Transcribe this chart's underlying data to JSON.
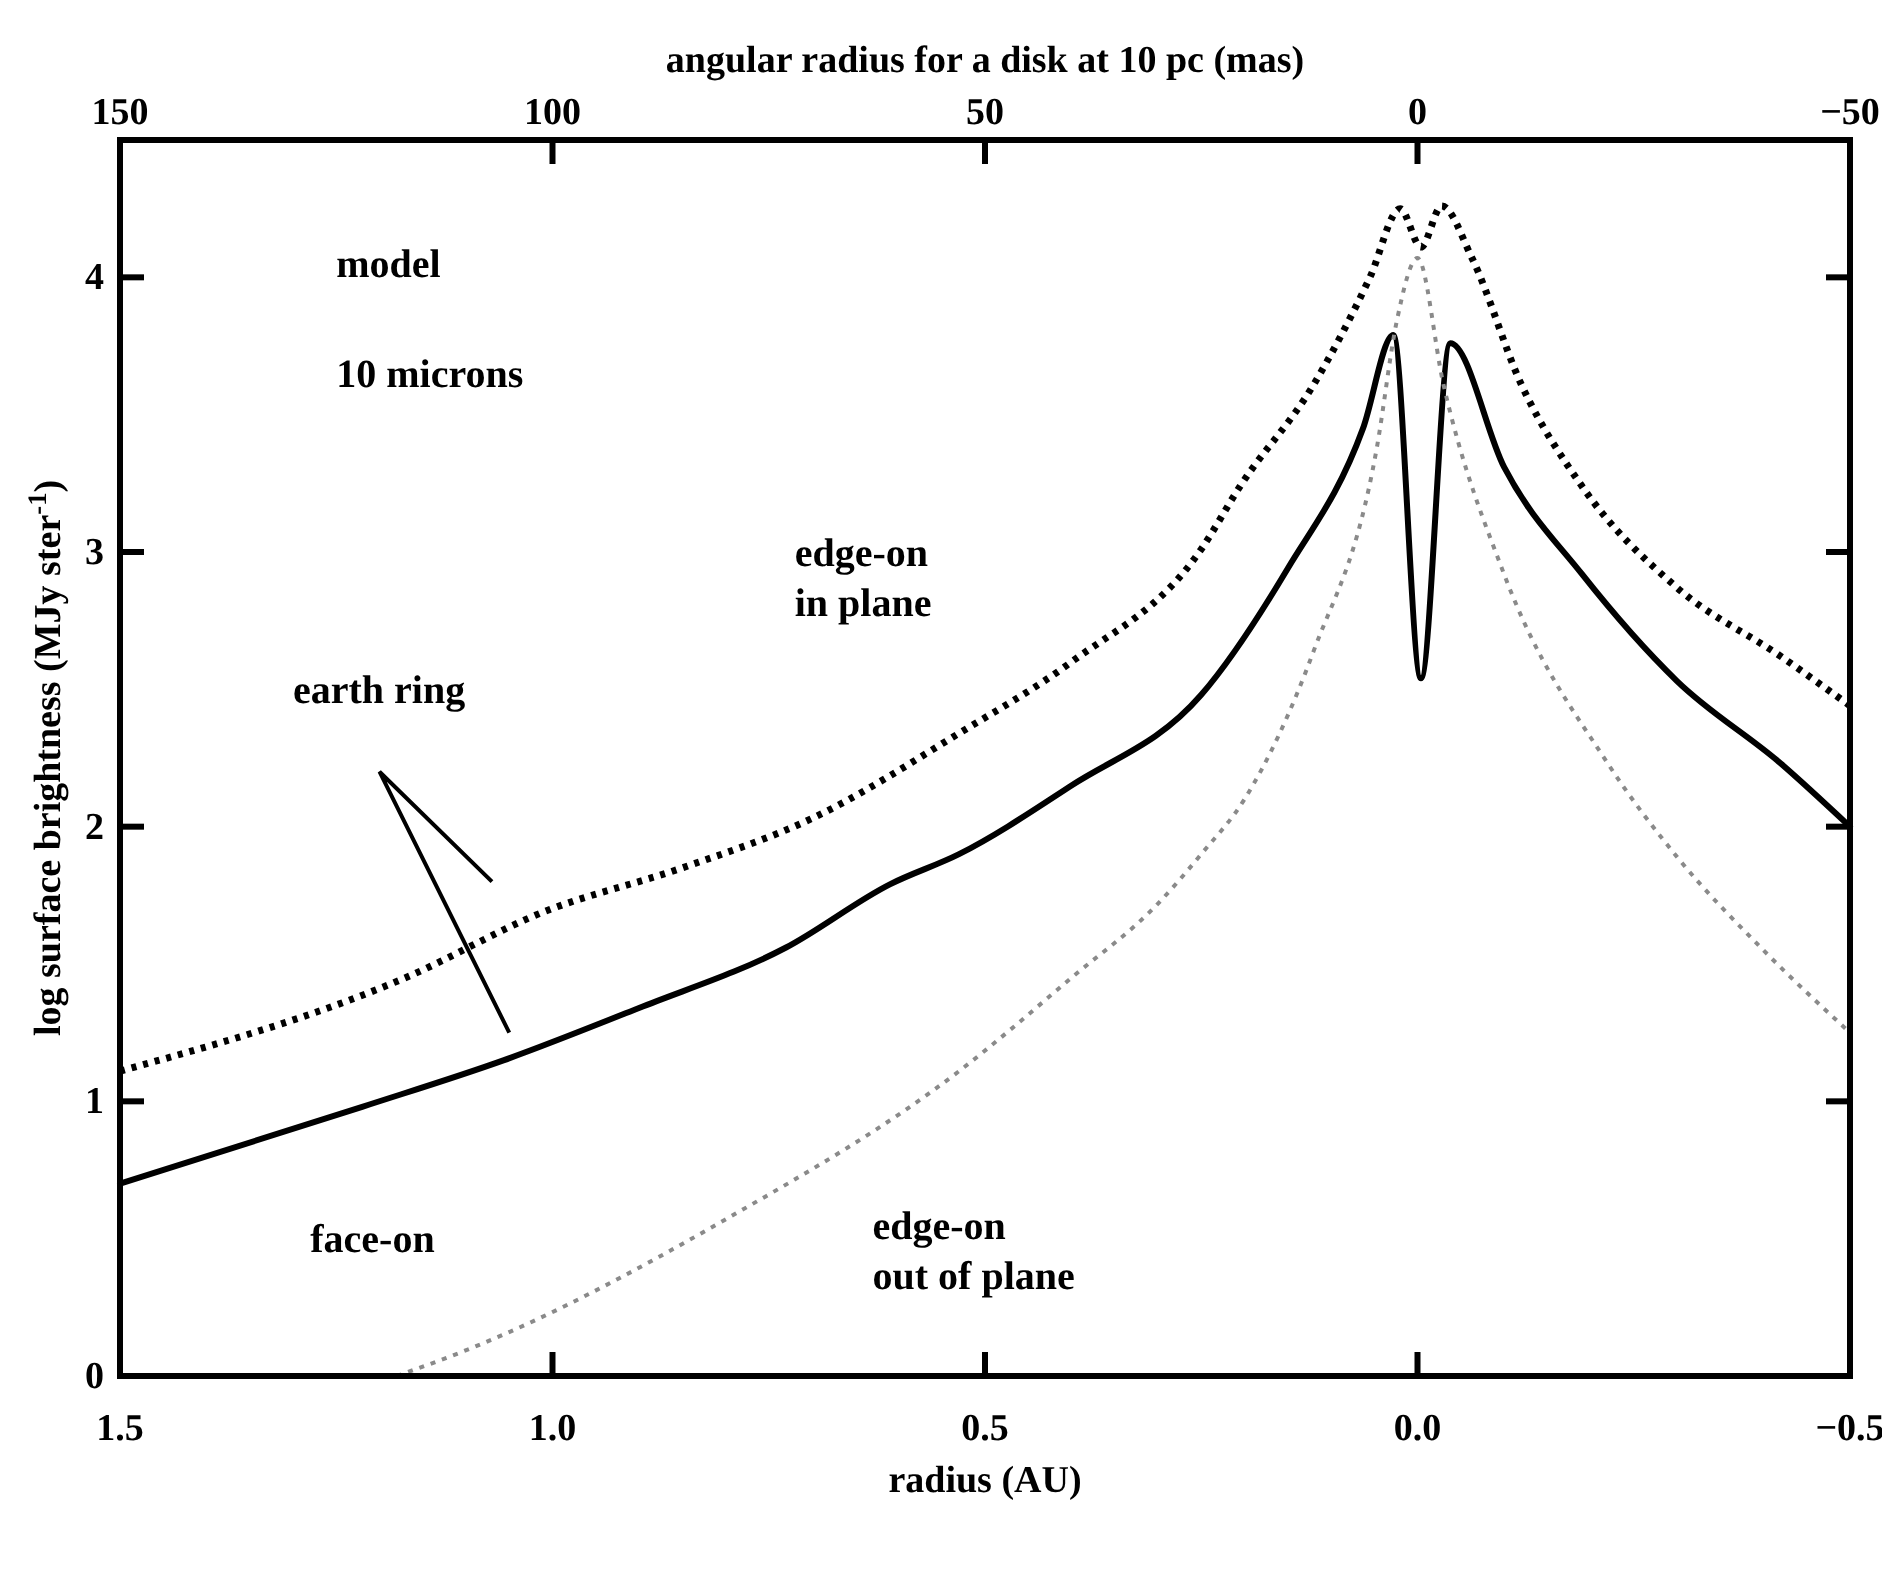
{
  "chart_data": {
    "type": "line",
    "xlabel": "radius (AU)",
    "ylabel": "log surface brightness (MJy ster$^{-1}$)",
    "x2label": "angular radius for a disk at 10 pc (mas)",
    "xlim": [
      1.5,
      -0.5
    ],
    "xticks": [
      {
        "value": 1.5,
        "label": "1.5"
      },
      {
        "value": 1,
        "label": "1.0"
      },
      {
        "value": 0.5,
        "label": "0.5"
      },
      {
        "value": 0,
        "label": "0.0"
      },
      {
        "value": -0.5,
        "label": "−0.5"
      }
    ],
    "x2lim": [
      150,
      -50
    ],
    "x2ticks": [
      150,
      100,
      50,
      0,
      {
        "value": -50,
        "label": "−50"
      }
    ],
    "ylim": [
      0,
      4.5
    ],
    "yticks": [
      0,
      1,
      2,
      3,
      4
    ],
    "marker": "none",
    "annotations": [
      "model",
      "10 microns",
      "earth ring"
    ],
    "series": [
      {
        "name": "face-on",
        "color": "#000000",
        "line_style": "solid",
        "x": [
          1.5,
          1.22,
          1.056,
          0.9,
          0.73,
          0.61,
          0.53,
          0.4,
          0.25,
          0.15,
          0.063,
          0.028,
          -0.004,
          -0.038,
          -0.1,
          -0.19,
          -0.3,
          -0.42,
          -0.5
        ],
        "values": [
          0.7,
          0.98,
          1.15,
          1.34,
          1.56,
          1.79,
          1.9,
          2.15,
          2.48,
          2.94,
          3.45,
          3.79,
          2.54,
          3.76,
          3.31,
          2.92,
          2.53,
          2.23,
          2.0
        ]
      },
      {
        "name": "edge-on in plane",
        "color": "#000000",
        "line_style": "dotted",
        "x": [
          1.5,
          1.17,
          1.01,
          0.85,
          0.7,
          0.53,
          0.4,
          0.25,
          0.205,
          0.12,
          0.055,
          0.02,
          -0.004,
          -0.028,
          -0.063,
          -0.12,
          -0.19,
          -0.3,
          -0.42,
          -0.5
        ],
        "values": [
          1.11,
          1.45,
          1.69,
          1.85,
          2.03,
          2.34,
          2.6,
          3.01,
          3.24,
          3.61,
          4.0,
          4.25,
          4.11,
          4.26,
          4.07,
          3.61,
          3.24,
          2.87,
          2.62,
          2.44
        ]
      },
      {
        "name": "edge-on out of plane",
        "color": "#8a8a8a",
        "line_style": "dotted",
        "x": [
          1.18,
          1.095,
          0.8,
          0.53,
          0.4,
          0.3,
          0.25,
          0.2,
          0.12,
          0.047,
          0.024,
          0,
          -0.03,
          -0.1,
          -0.22,
          -0.3,
          -0.4,
          -0.5
        ],
        "values": [
          0,
          0.1,
          0.57,
          1.11,
          1.45,
          1.72,
          1.9,
          2.1,
          2.64,
          3.38,
          3.84,
          4.07,
          3.61,
          2.92,
          2.23,
          1.89,
          1.55,
          1.25
        ]
      }
    ]
  }
}
